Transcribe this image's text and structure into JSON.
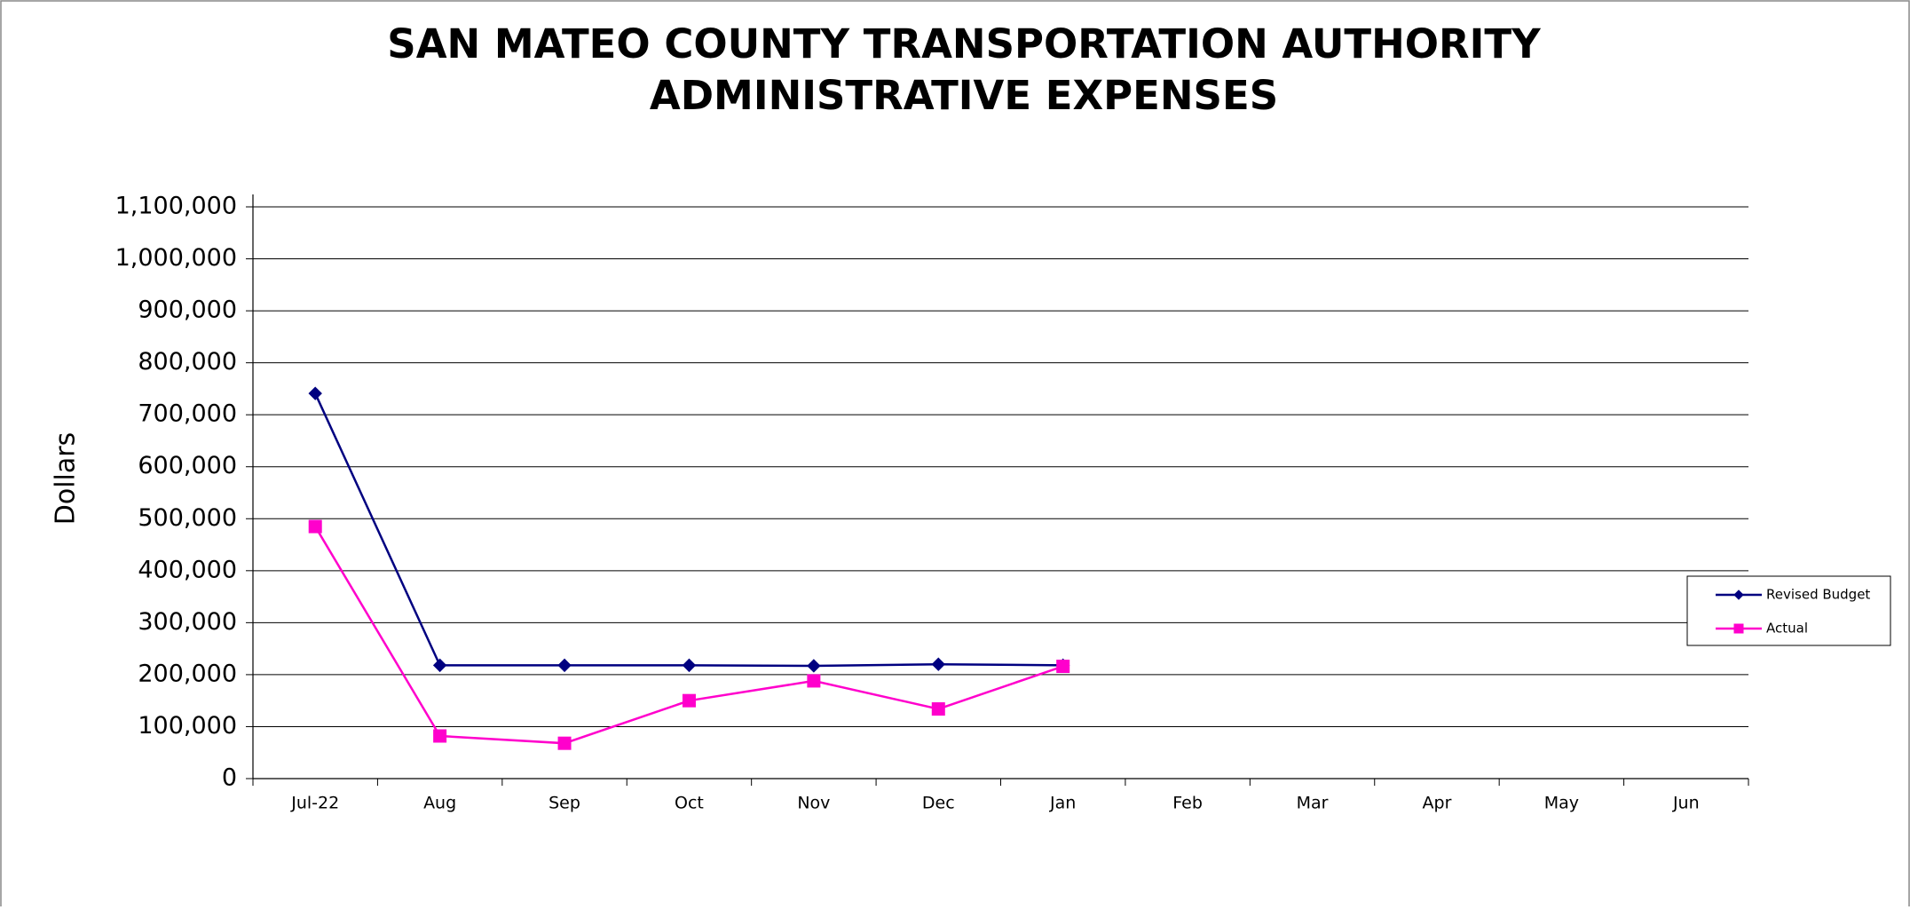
{
  "chart_data": {
    "type": "line",
    "title": [
      "SAN MATEO COUNTY TRANSPORTATION AUTHORITY",
      "ADMINISTRATIVE EXPENSES"
    ],
    "y_label": "Dollars",
    "categories": [
      "Jul-22",
      "Aug",
      "Sep",
      "Oct",
      "Nov",
      "Dec",
      "Jan",
      "Feb",
      "Mar",
      "Apr",
      "May",
      "Jun"
    ],
    "series": [
      {
        "name": "Revised Budget",
        "color": "#000080",
        "marker": "diamond",
        "values": [
          741000,
          218000,
          218000,
          218000,
          217000,
          220000,
          218000,
          null,
          null,
          null,
          null,
          null
        ]
      },
      {
        "name": "Actual",
        "color": "#ff00cc",
        "marker": "square",
        "values": [
          485000,
          82000,
          68000,
          150000,
          188000,
          134000,
          216000,
          null,
          null,
          null,
          null,
          null
        ]
      }
    ],
    "ylim": [
      0,
      1100000
    ],
    "yticks": [
      0,
      {
        "value": 100000,
        "label": "100,000"
      },
      {
        "value": 200000,
        "label": "200,000"
      },
      {
        "value": 300000,
        "label": "300,000"
      },
      {
        "value": 400000,
        "label": "400,000"
      },
      {
        "value": 500000,
        "label": "500,000"
      },
      {
        "value": 600000,
        "label": "600,000"
      },
      {
        "value": 700000,
        "label": "700,000"
      },
      {
        "value": 800000,
        "label": "800,000"
      },
      {
        "value": 900000,
        "label": "900,000"
      },
      {
        "value": 1000000,
        "label": "1,000,000"
      },
      {
        "value": 1100000,
        "label": "1,100,000"
      }
    ],
    "grid": true,
    "legend": "right"
  }
}
